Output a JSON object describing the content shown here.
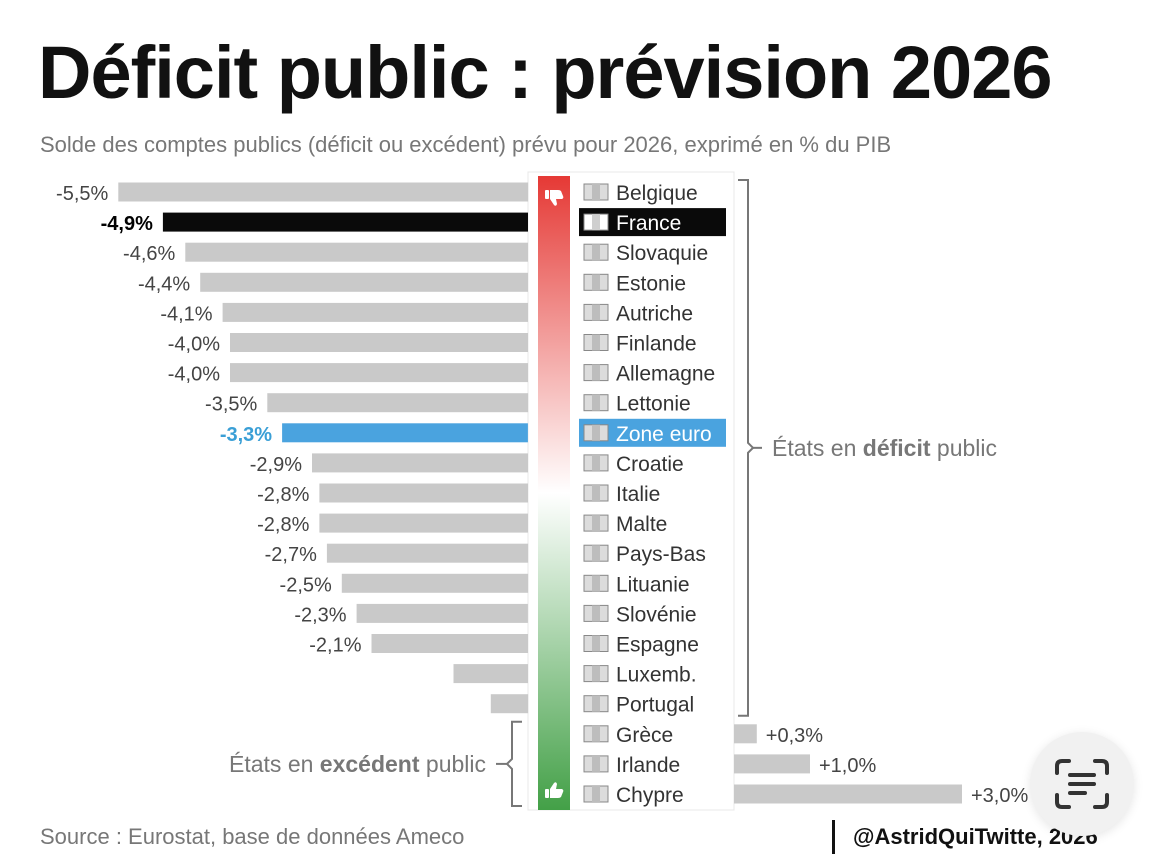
{
  "title": "Déficit public : prévision 2026",
  "subtitle": "Solde des comptes publics (déficit ou excédent) prévu pour 2026, exprimé en % du PIB",
  "source": "Source : Eurostat, base de données Ameco",
  "credit": "@AstridQuiTwitte, 2026",
  "colors": {
    "bar_default": "#c9c9c9",
    "bar_france": "#0a0a0a",
    "bar_eurozone": "#4aa3df",
    "label_eurozone": "#3a9fd6",
    "gradient_top": "#e53935",
    "gradient_mid": "#ffffff",
    "gradient_bottom": "#43a047",
    "bracket": "#777777"
  },
  "icons": {
    "top": "thumbs-down-icon",
    "bottom": "thumbs-up-icon",
    "corner_button": "text-scan-icon"
  },
  "chart_data": {
    "type": "bar",
    "orientation": "horizontal",
    "unit": "% du PIB",
    "grid": false,
    "legend": "none",
    "xlim": [
      -5.5,
      3.0
    ],
    "categories": [
      "Belgique",
      "France",
      "Slovaquie",
      "Estonie",
      "Autriche",
      "Finlande",
      "Allemagne",
      "Lettonie",
      "Zone euro",
      "Croatie",
      "Italie",
      "Malte",
      "Pays-Bas",
      "Lituanie",
      "Slovénie",
      "Espagne",
      "Luxemb.",
      "Portugal",
      "Grèce",
      "Irlande",
      "Chypre"
    ],
    "values": [
      -5.5,
      -4.9,
      -4.6,
      -4.4,
      -4.1,
      -4.0,
      -4.0,
      -3.5,
      -3.3,
      -2.9,
      -2.8,
      -2.8,
      -2.7,
      -2.5,
      -2.3,
      -2.1,
      -1.0,
      -0.5,
      0.3,
      1.0,
      3.0
    ],
    "value_labels": [
      "-5,5%",
      "-4,9%",
      "-4,6%",
      "-4,4%",
      "-4,1%",
      "-4,0%",
      "-4,0%",
      "-3,5%",
      "-3,3%",
      "-2,9%",
      "-2,8%",
      "-2,8%",
      "-2,7%",
      "-2,5%",
      "-2,3%",
      "-2,1%",
      "",
      "",
      "+0,3%",
      "+1,0%",
      "+3,0%"
    ],
    "highlight": {
      "France": "dark",
      "Zone euro": "blue"
    },
    "groups": [
      {
        "label_pre": "États en ",
        "label_bold": "déficit",
        "label_post": " public",
        "from": 0,
        "to": 17
      },
      {
        "label_pre": "États en ",
        "label_bold": "excédent",
        "label_post": " public",
        "from": 18,
        "to": 20
      }
    ]
  }
}
